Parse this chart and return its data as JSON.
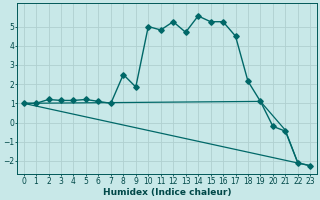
{
  "background_color": "#c8e8e8",
  "grid_color": "#b0d0d0",
  "line_color": "#006868",
  "xlabel": "Humidex (Indice chaleur)",
  "xlim": [
    -0.5,
    23.5
  ],
  "ylim": [
    -2.7,
    6.2
  ],
  "yticks": [
    -2,
    -1,
    0,
    1,
    2,
    3,
    4,
    5
  ],
  "xticks": [
    0,
    1,
    2,
    3,
    4,
    5,
    6,
    7,
    8,
    9,
    10,
    11,
    12,
    13,
    14,
    15,
    16,
    17,
    18,
    19,
    20,
    21,
    22,
    23
  ],
  "curve1_x": [
    0,
    1,
    2,
    3,
    4,
    5,
    6,
    7,
    8,
    9,
    10,
    11,
    12,
    13,
    14,
    15,
    16,
    17,
    18,
    19,
    20,
    21,
    22,
    23
  ],
  "curve1_y": [
    1.0,
    1.0,
    1.2,
    1.15,
    1.15,
    1.2,
    1.1,
    1.0,
    2.5,
    1.85,
    5.0,
    4.82,
    5.25,
    4.7,
    5.55,
    5.25,
    5.25,
    4.5,
    2.15,
    1.1,
    -0.2,
    -0.45,
    -2.1,
    -2.25
  ],
  "curve2_x": [
    0,
    19,
    21,
    22
  ],
  "curve2_y": [
    1.0,
    1.1,
    -0.4,
    -2.1
  ],
  "curve3_x": [
    0,
    23
  ],
  "curve3_y": [
    1.0,
    -2.25
  ],
  "markersize": 2.8
}
